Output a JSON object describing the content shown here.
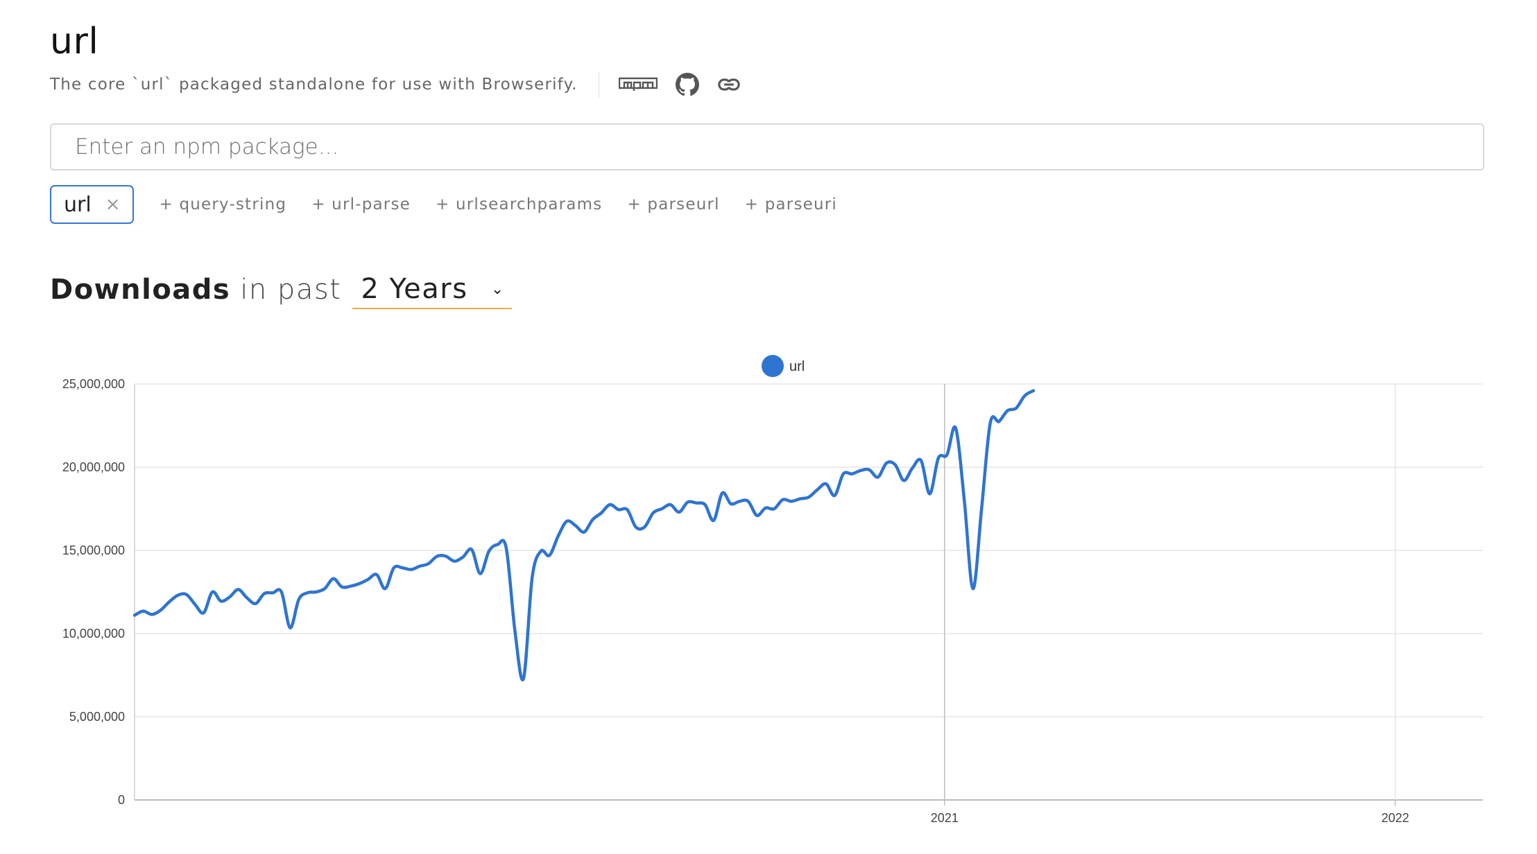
{
  "package": {
    "name": "url",
    "description": "The core `url` packaged standalone for use with Browserify."
  },
  "icons": {
    "npm": "npm-logo-icon",
    "github": "github-icon",
    "link": "link-icon"
  },
  "search": {
    "placeholder": "Enter an npm package..."
  },
  "selected_tags": [
    {
      "label": "url",
      "remove": "×"
    }
  ],
  "suggestions": [
    "+ query-string",
    "+ url-parse",
    "+ urlsearchparams",
    "+ parseurl",
    "+ parseuri"
  ],
  "downloads_header": {
    "strong": "Downloads",
    "light": "in past",
    "period": "2 Years",
    "chevron": "⌄"
  },
  "colors": {
    "series": "#2f74d0",
    "accent_underline": "#f0a94a",
    "chip_border": "#3578d4"
  },
  "chart_data": {
    "type": "line",
    "legend": "top-center",
    "grid": true,
    "ylim": [
      0,
      25000000
    ],
    "yticks": [
      "0",
      "5,000,000",
      "10,000,000",
      "15,000,000",
      "20,000,000",
      "25,000,000"
    ],
    "xticks": [
      "2021",
      "2022"
    ],
    "x_range": [
      "2019-03-17",
      "2022-03-13"
    ],
    "series": [
      {
        "name": "url",
        "points": [
          [
            "2019-03-17",
            11100000
          ],
          [
            "2019-03-24",
            11350000
          ],
          [
            "2019-03-31",
            11150000
          ],
          [
            "2019-04-07",
            11400000
          ],
          [
            "2019-04-14",
            11900000
          ],
          [
            "2019-04-21",
            12300000
          ],
          [
            "2019-04-28",
            12350000
          ],
          [
            "2019-05-05",
            11750000
          ],
          [
            "2019-05-12",
            11250000
          ],
          [
            "2019-05-19",
            12500000
          ],
          [
            "2019-05-26",
            11950000
          ],
          [
            "2019-06-02",
            12200000
          ],
          [
            "2019-06-09",
            12650000
          ],
          [
            "2019-06-16",
            12150000
          ],
          [
            "2019-06-23",
            11800000
          ],
          [
            "2019-06-30",
            12400000
          ],
          [
            "2019-07-07",
            12450000
          ],
          [
            "2019-07-14",
            12500000
          ],
          [
            "2019-07-21",
            10350000
          ],
          [
            "2019-07-28",
            12050000
          ],
          [
            "2019-08-04",
            12450000
          ],
          [
            "2019-08-11",
            12500000
          ],
          [
            "2019-08-18",
            12700000
          ],
          [
            "2019-08-25",
            13300000
          ],
          [
            "2019-09-01",
            12800000
          ],
          [
            "2019-09-08",
            12850000
          ],
          [
            "2019-09-15",
            13000000
          ],
          [
            "2019-09-22",
            13250000
          ],
          [
            "2019-09-29",
            13550000
          ],
          [
            "2019-10-06",
            12700000
          ],
          [
            "2019-10-13",
            13950000
          ],
          [
            "2019-10-20",
            13950000
          ],
          [
            "2019-10-27",
            13850000
          ],
          [
            "2019-11-03",
            14050000
          ],
          [
            "2019-11-10",
            14200000
          ],
          [
            "2019-11-17",
            14650000
          ],
          [
            "2019-11-24",
            14650000
          ],
          [
            "2019-12-01",
            14350000
          ],
          [
            "2019-12-08",
            14600000
          ],
          [
            "2019-12-15",
            15050000
          ],
          [
            "2019-12-22",
            13600000
          ],
          [
            "2019-12-29",
            14950000
          ],
          [
            "2020-01-05",
            15350000
          ],
          [
            "2020-01-12",
            15150000
          ],
          [
            "2020-01-19",
            10200000
          ],
          [
            "2020-01-26",
            7300000
          ],
          [
            "2020-02-02",
            13350000
          ],
          [
            "2020-02-09",
            14950000
          ],
          [
            "2020-02-16",
            14700000
          ],
          [
            "2020-02-23",
            15850000
          ],
          [
            "2020-03-01",
            16750000
          ],
          [
            "2020-03-08",
            16500000
          ],
          [
            "2020-03-15",
            16100000
          ],
          [
            "2020-03-22",
            16850000
          ],
          [
            "2020-03-29",
            17250000
          ],
          [
            "2020-04-05",
            17750000
          ],
          [
            "2020-04-12",
            17450000
          ],
          [
            "2020-04-19",
            17450000
          ],
          [
            "2020-04-26",
            16400000
          ],
          [
            "2020-05-03",
            16400000
          ],
          [
            "2020-05-10",
            17250000
          ],
          [
            "2020-05-17",
            17500000
          ],
          [
            "2020-05-24",
            17750000
          ],
          [
            "2020-05-31",
            17300000
          ],
          [
            "2020-06-07",
            17900000
          ],
          [
            "2020-06-14",
            17850000
          ],
          [
            "2020-06-21",
            17750000
          ],
          [
            "2020-06-28",
            16800000
          ],
          [
            "2020-07-05",
            18450000
          ],
          [
            "2020-07-12",
            17800000
          ],
          [
            "2020-07-19",
            17950000
          ],
          [
            "2020-07-26",
            17950000
          ],
          [
            "2020-08-02",
            17100000
          ],
          [
            "2020-08-09",
            17550000
          ],
          [
            "2020-08-16",
            17500000
          ],
          [
            "2020-08-23",
            18050000
          ],
          [
            "2020-08-30",
            17950000
          ],
          [
            "2020-09-06",
            18100000
          ],
          [
            "2020-09-13",
            18200000
          ],
          [
            "2020-09-20",
            18650000
          ],
          [
            "2020-09-27",
            19000000
          ],
          [
            "2020-10-04",
            18300000
          ],
          [
            "2020-10-11",
            19600000
          ],
          [
            "2020-10-18",
            19600000
          ],
          [
            "2020-10-25",
            19800000
          ],
          [
            "2020-11-01",
            19850000
          ],
          [
            "2020-11-08",
            19400000
          ],
          [
            "2020-11-15",
            20250000
          ],
          [
            "2020-11-22",
            20150000
          ],
          [
            "2020-11-29",
            19200000
          ],
          [
            "2020-12-06",
            19950000
          ],
          [
            "2020-12-13",
            20400000
          ],
          [
            "2020-12-20",
            18400000
          ],
          [
            "2020-12-27",
            20550000
          ],
          [
            "2021-01-03",
            20750000
          ],
          [
            "2021-01-10",
            22350000
          ],
          [
            "2021-01-17",
            18000000
          ],
          [
            "2021-01-24",
            12700000
          ],
          [
            "2021-01-31",
            17500000
          ],
          [
            "2021-02-07",
            22650000
          ],
          [
            "2021-02-14",
            22750000
          ],
          [
            "2021-02-21",
            23400000
          ],
          [
            "2021-02-28",
            23550000
          ],
          [
            "2021-03-07",
            24300000
          ],
          [
            "2021-03-14",
            24600000
          ]
        ]
      }
    ]
  }
}
